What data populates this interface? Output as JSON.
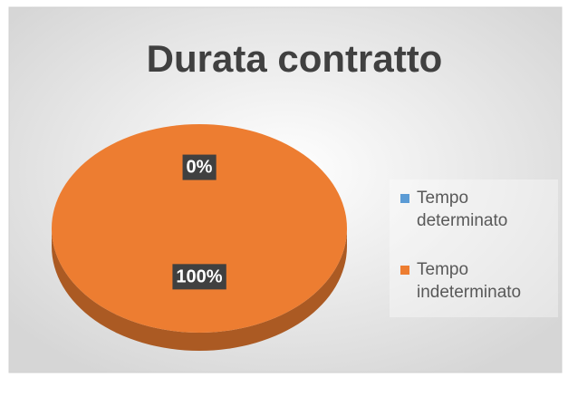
{
  "chart_data": {
    "type": "pie",
    "title": "Durata contratto",
    "categories": [
      "Tempo determinato",
      "Tempo indeterminato"
    ],
    "values": [
      0,
      100
    ],
    "value_labels": [
      "0%",
      "100%"
    ],
    "colors": [
      "#5b9bd5",
      "#ed7d31"
    ],
    "legend": "right"
  }
}
